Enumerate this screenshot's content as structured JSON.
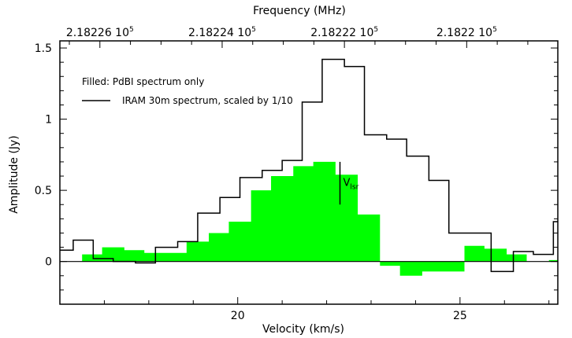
{
  "chart_data": {
    "type": "line",
    "xlabel": "Velocity (km/s)",
    "ylabel": "Amplitude (Jy)",
    "top_axis_label": "Frequency (MHz)",
    "top_axis_ticks": [
      {
        "label": "2.18226  10",
        "exp": "5"
      },
      {
        "label": "2.18224  10",
        "exp": "5"
      },
      {
        "label": "2.18222  10",
        "exp": "5"
      },
      {
        "label": "2.1822  10",
        "exp": "5"
      }
    ],
    "xlim": [
      16.0,
      27.2
    ],
    "ylim": [
      -0.3,
      1.55
    ],
    "x_ticks": [
      20,
      25
    ],
    "y_ticks": [
      0,
      0.5,
      1,
      1.5
    ],
    "y_tick_labels": [
      "0",
      "0.5",
      "1",
      "1.5"
    ],
    "x_tick_labels": [
      "20",
      "25"
    ],
    "vlsr_marker": {
      "x": 22.3,
      "y_range": [
        0.4,
        0.7
      ],
      "label": "V",
      "sub": "lsr"
    },
    "legend": {
      "filled_label": "Filled: PdBI spectrum only",
      "line_label": "IRAM 30m spectrum, scaled by 1/10"
    },
    "series": [
      {
        "name": "PdBI spectrum",
        "style": "filled-step",
        "color": "#00ff00",
        "x": [
          16.0,
          16.5,
          16.95,
          17.45,
          17.9,
          18.4,
          18.85,
          19.35,
          19.8,
          20.3,
          20.75,
          21.25,
          21.7,
          22.2,
          22.7,
          23.2,
          23.65,
          24.15,
          24.6,
          25.1,
          25.55,
          26.05,
          26.5,
          27.0
        ],
        "y": [
          0.0,
          0.05,
          0.1,
          0.08,
          0.06,
          0.06,
          0.14,
          0.2,
          0.28,
          0.5,
          0.6,
          0.67,
          0.7,
          0.61,
          0.33,
          -0.03,
          -0.1,
          -0.07,
          -0.07,
          0.11,
          0.09,
          0.05,
          0.0,
          0.01
        ]
      },
      {
        "name": "IRAM 30m spectrum",
        "style": "step-line",
        "color": "#000000",
        "x": [
          16.0,
          16.3,
          16.75,
          17.2,
          17.7,
          18.15,
          18.65,
          19.1,
          19.6,
          20.05,
          20.55,
          21.0,
          21.45,
          21.9,
          22.4,
          22.85,
          23.35,
          23.8,
          24.3,
          24.75,
          25.25,
          25.7,
          26.2,
          26.65,
          27.1
        ],
        "y": [
          0.08,
          0.15,
          0.02,
          0.0,
          -0.01,
          0.1,
          0.14,
          0.34,
          0.45,
          0.59,
          0.64,
          0.71,
          1.12,
          1.42,
          1.37,
          0.89,
          0.86,
          0.74,
          0.57,
          0.2,
          0.2,
          -0.07,
          0.07,
          0.05,
          0.28
        ]
      }
    ]
  }
}
